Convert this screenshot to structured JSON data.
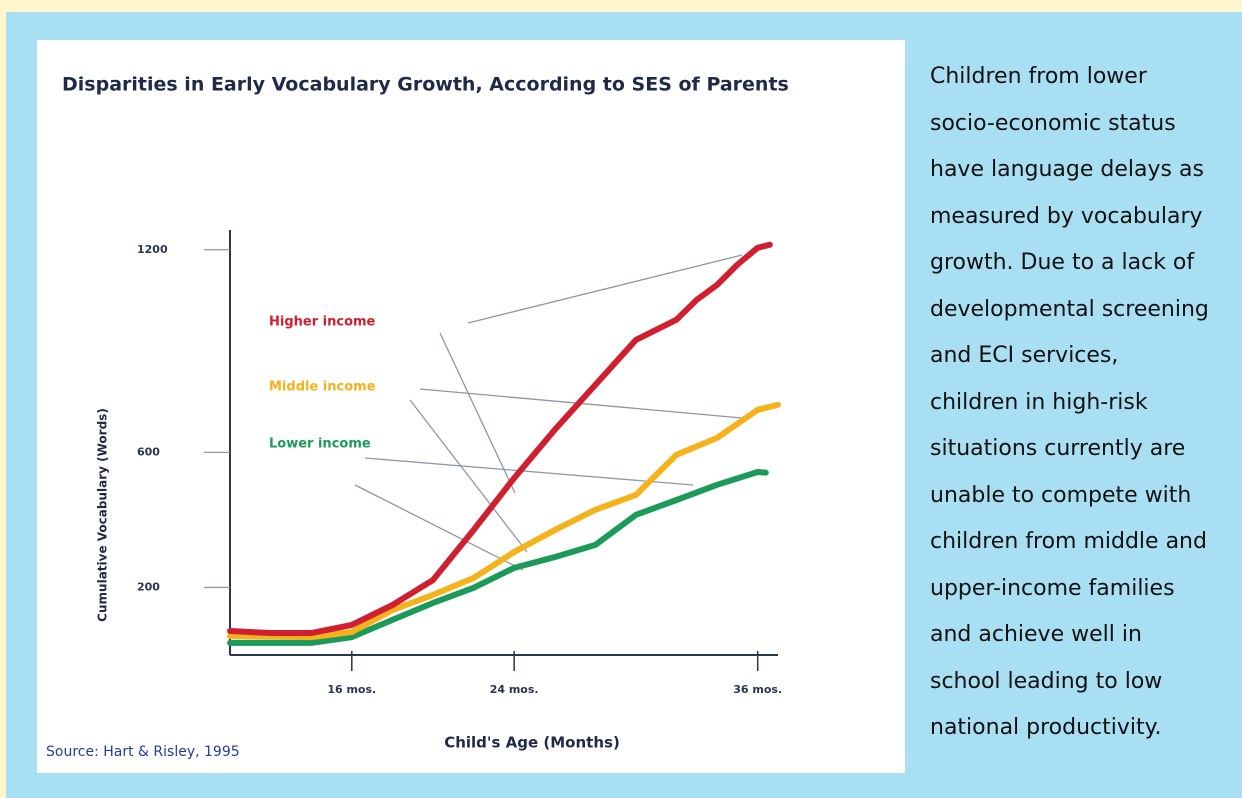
{
  "chart_data": {
    "type": "line",
    "title": "Disparities in Early Vocabulary Growth, According to SES of Parents",
    "x_label": "Child's Age (Months)",
    "y_label": "Cumulative Vocabulary (Words)",
    "source": "Source: Hart & Risley, 1995",
    "xlim": [
      10,
      37
    ],
    "xticks": [
      {
        "value": 16,
        "label": "16 mos."
      },
      {
        "value": 24,
        "label": "24 mos."
      },
      {
        "value": 36,
        "label": "36 mos."
      }
    ],
    "ylim": [
      0,
      1300
    ],
    "yticks": [
      200,
      600,
      1200
    ],
    "series": [
      {
        "name": "Higher income",
        "color": "#d0202f",
        "x": [
          10,
          12,
          14,
          16,
          18,
          20,
          22,
          24,
          26,
          28,
          30,
          32,
          33,
          34,
          35,
          36,
          36.6
        ],
        "values": [
          71,
          65,
          65,
          89,
          148,
          222,
          370,
          524,
          667,
          800,
          933,
          993,
          1052,
          1096,
          1156,
          1206,
          1215
        ]
      },
      {
        "name": "Middle income",
        "color": "#f6b21b",
        "x": [
          10,
          14,
          16,
          18,
          20,
          22,
          24,
          26,
          28,
          30,
          32,
          34,
          36,
          37
        ],
        "values": [
          56,
          53,
          68,
          133,
          178,
          228,
          305,
          370,
          430,
          474,
          593,
          643,
          726,
          741
        ]
      },
      {
        "name": "Lower income",
        "color": "#1c9a5a",
        "x": [
          10,
          14,
          16,
          18,
          20,
          22,
          24,
          26,
          28,
          30,
          32,
          34,
          36,
          36.4
        ],
        "values": [
          36,
          36,
          53,
          104,
          154,
          199,
          258,
          290,
          326,
          415,
          459,
          504,
          542,
          540
        ]
      }
    ]
  },
  "body_lines": [
    "Children from lower",
    "socio-economic status",
    "have language delays as",
    "measured by vocabulary",
    "growth. Due to a lack of",
    "developmental screening",
    "and ECI services,",
    "children in high-risk",
    "situations currently are",
    "unable to compete with",
    "children from middle and",
    "upper-income families",
    "and achieve well in",
    "school leading to low",
    "national productivity."
  ]
}
